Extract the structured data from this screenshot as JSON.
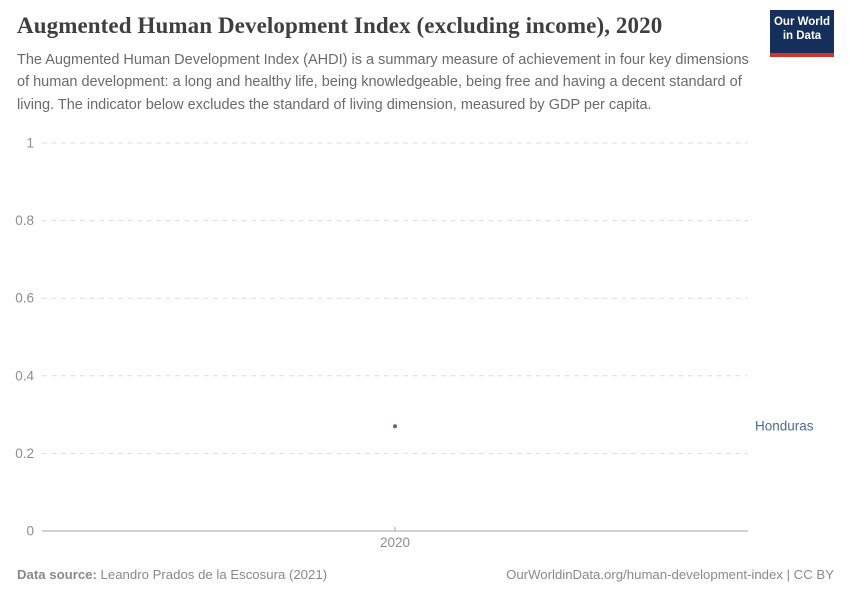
{
  "header": {
    "title": "Augmented Human Development Index (excluding income), 2020",
    "subtitle": "The Augmented Human Development Index (AHDI) is a summary measure of achievement in four key dimensions of human development: a long and healthy life, being knowledgeable, being free and having a decent standard of living. The indicator below excludes the standard of living dimension, measured by GDP per capita.",
    "logo": {
      "line1": "Our World",
      "line2": "in Data"
    }
  },
  "chart_data": {
    "type": "scatter",
    "title": "Augmented Human Development Index (excluding income), 2020",
    "xlabel": "",
    "ylabel": "",
    "x": [
      2020
    ],
    "xticklabels": [
      "2020"
    ],
    "series": [
      {
        "name": "Honduras",
        "values": [
          0.27
        ],
        "color": "#4c6a9c"
      }
    ],
    "ylim": [
      0,
      1
    ],
    "yticks": [
      0,
      0.2,
      0.4,
      0.6,
      0.8,
      1
    ],
    "grid": "horizontal-dashed",
    "legend_position": "entity-label-right-of-plot"
  },
  "footer": {
    "datasource_label": "Data source:",
    "datasource_value": " Leandro Prados de la Escosura (2021)",
    "attribution": "OurWorldinData.org/human-development-index | CC BY"
  },
  "colors": {
    "accent_blue": "#4c6a9c",
    "grid": "#dedede",
    "axis": "#a6a6a6",
    "tick_text": "#8e8e8e",
    "logo_bg": "#142f5c",
    "logo_stripe": "#d0342c"
  }
}
